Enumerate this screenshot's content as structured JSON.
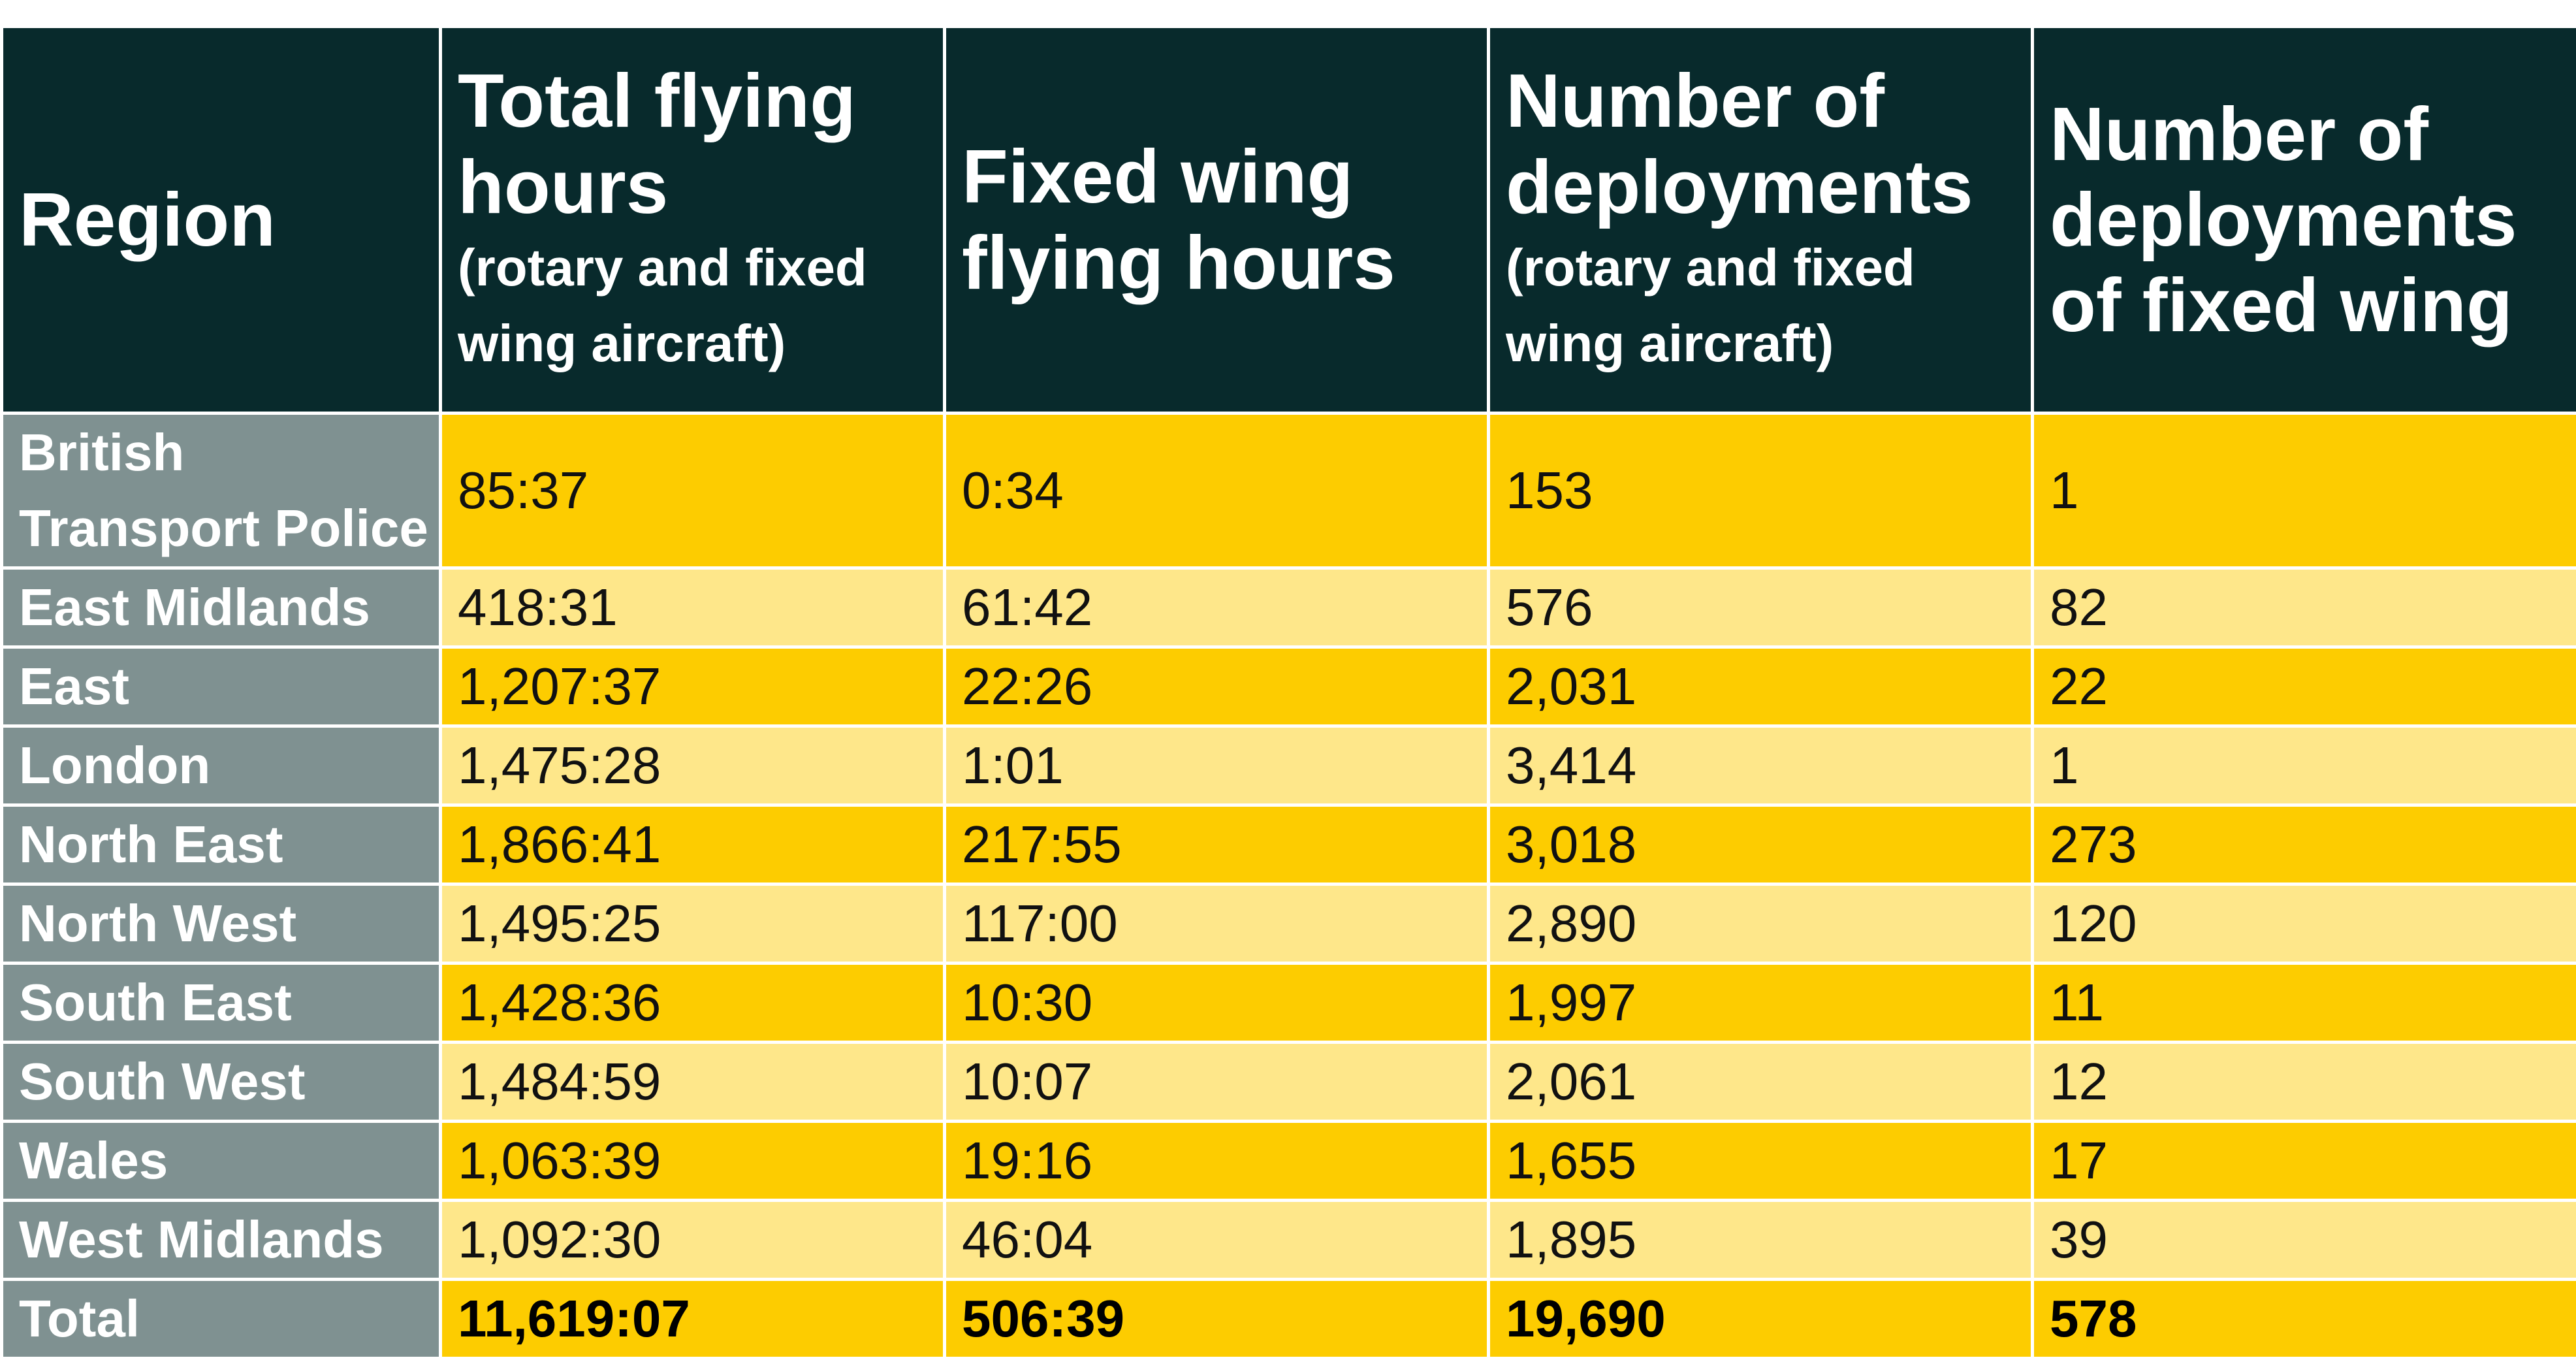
{
  "table": {
    "headers": [
      {
        "main": "Region",
        "sub": ""
      },
      {
        "main": "Total flying hours",
        "sub": "(rotary and fixed wing aircraft)"
      },
      {
        "main": "Fixed wing flying hours",
        "sub": ""
      },
      {
        "main": "Number of deployments",
        "sub": "(rotary and fixed wing aircraft)"
      },
      {
        "main": "Number of deployments of fixed wing",
        "sub": ""
      }
    ],
    "rows": [
      {
        "region": "British Transport Police",
        "total_hours": "85:37",
        "fixed_hours": "0:34",
        "deployments": "153",
        "fixed_deployments": "1"
      },
      {
        "region": "East Midlands",
        "total_hours": "418:31",
        "fixed_hours": "61:42",
        "deployments": "576",
        "fixed_deployments": "82"
      },
      {
        "region": "East",
        "total_hours": "1,207:37",
        "fixed_hours": "22:26",
        "deployments": "2,031",
        "fixed_deployments": "22"
      },
      {
        "region": "London",
        "total_hours": "1,475:28",
        "fixed_hours": "1:01",
        "deployments": "3,414",
        "fixed_deployments": "1"
      },
      {
        "region": "North East",
        "total_hours": "1,866:41",
        "fixed_hours": "217:55",
        "deployments": "3,018",
        "fixed_deployments": "273"
      },
      {
        "region": "North West",
        "total_hours": "1,495:25",
        "fixed_hours": "117:00",
        "deployments": "2,890",
        "fixed_deployments": "120"
      },
      {
        "region": "South East",
        "total_hours": "1,428:36",
        "fixed_hours": "10:30",
        "deployments": "1,997",
        "fixed_deployments": "11"
      },
      {
        "region": "South West",
        "total_hours": "1,484:59",
        "fixed_hours": "10:07",
        "deployments": "2,061",
        "fixed_deployments": "12"
      },
      {
        "region": "Wales",
        "total_hours": "1,063:39",
        "fixed_hours": "19:16",
        "deployments": "1,655",
        "fixed_deployments": "17"
      },
      {
        "region": "West Midlands",
        "total_hours": "1,092:30",
        "fixed_hours": "46:04",
        "deployments": "1,895",
        "fixed_deployments": "39"
      }
    ],
    "total": {
      "region": "Total",
      "total_hours": "11,619:07",
      "fixed_hours": "506:39",
      "deployments": "19,690",
      "fixed_deployments": "578"
    }
  },
  "colors": {
    "header_bg": "#082a2c",
    "region_bg": "#7f9191",
    "row_dark": "#fdcc00",
    "row_light": "#fee78a"
  }
}
